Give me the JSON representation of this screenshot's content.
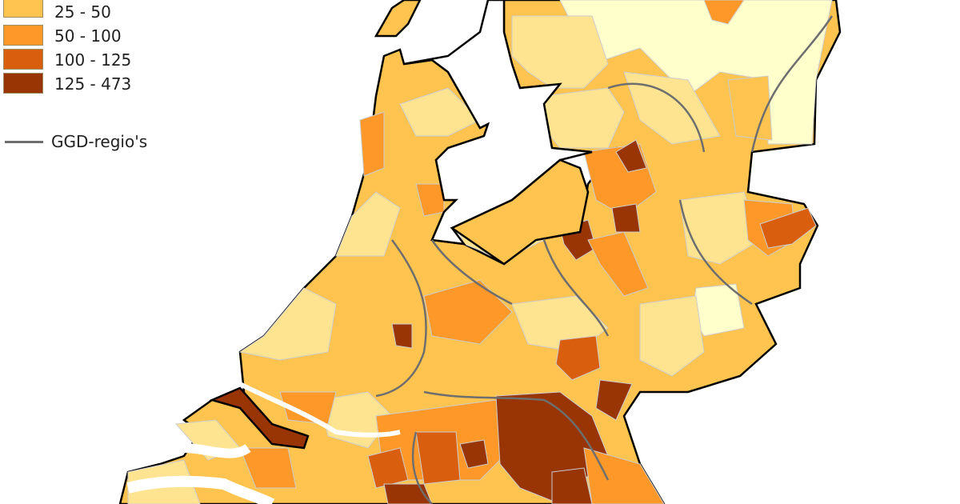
{
  "legend": {
    "classes": [
      {
        "label": "25 - 50",
        "color": "#fec44f"
      },
      {
        "label": "50 - 100",
        "color": "#fe9929"
      },
      {
        "label": "100 - 125",
        "color": "#d95f0e"
      },
      {
        "label": "125 - 473",
        "color": "#993404"
      }
    ],
    "lower_classes_colors": [
      "#ffffcc",
      "#fee391"
    ],
    "boundary_label": "GGD-regio's",
    "boundary_color": "#6e6e6e"
  }
}
